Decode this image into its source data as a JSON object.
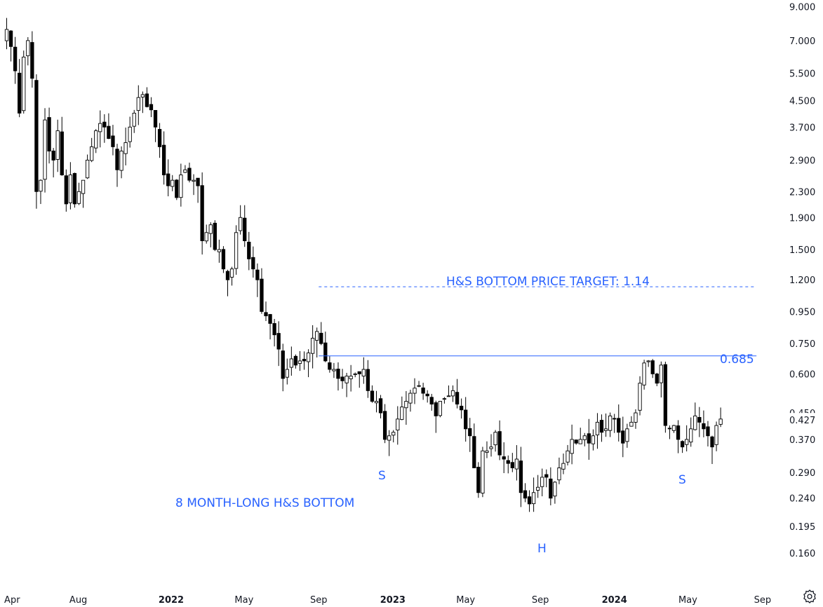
{
  "chart_data": {
    "type": "candlestick",
    "y_scale": "log",
    "ylim": [
      0.14,
      9.2
    ],
    "y_ticks": [
      "9.000",
      "7.000",
      "5.500",
      "4.500",
      "3.700",
      "2.900",
      "2.300",
      "1.900",
      "1.500",
      "1.200",
      "0.950",
      "0.750",
      "0.600",
      "0.450",
      "0.370",
      "0.290",
      "0.240",
      "0.195",
      "0.160"
    ],
    "last_price": "0.427",
    "x_ticks": [
      {
        "label": "Apr",
        "date": "2021-04-01",
        "year": false
      },
      {
        "label": "Aug",
        "date": "2021-08-01",
        "year": false
      },
      {
        "label": "2022",
        "date": "2022-01-01",
        "year": true
      },
      {
        "label": "May",
        "date": "2022-05-01",
        "year": false
      },
      {
        "label": "Sep",
        "date": "2022-09-01",
        "year": false
      },
      {
        "label": "2023",
        "date": "2023-01-01",
        "year": true
      },
      {
        "label": "May",
        "date": "2023-05-01",
        "year": false
      },
      {
        "label": "Sep",
        "date": "2023-09-01",
        "year": false
      },
      {
        "label": "2024",
        "date": "2024-01-01",
        "year": true
      },
      {
        "label": "May",
        "date": "2024-05-01",
        "year": false
      },
      {
        "label": "Sep",
        "date": "2024-09-01",
        "year": false
      }
    ],
    "x_range": [
      "2021-03-25",
      "2024-09-22"
    ],
    "candles_start": "2021-04-05",
    "candle_interval": "weekly",
    "close": [
      7.6,
      6.7,
      5.6,
      4.1,
      6.2,
      7.0,
      5.3,
      2.3,
      2.5,
      3.9,
      3.1,
      2.9,
      3.6,
      2.6,
      2.1,
      2.6,
      2.1,
      2.3,
      2.5,
      2.9,
      3.2,
      3.6,
      3.8,
      3.7,
      3.4,
      3.2,
      2.7,
      3.1,
      3.3,
      3.7,
      4.1,
      4.6,
      4.7,
      4.3,
      4.2,
      3.7,
      3.2,
      2.6,
      2.4,
      2.5,
      2.2,
      2.6,
      2.7,
      2.5,
      2.5,
      2.4,
      1.6,
      1.7,
      1.8,
      1.5,
      1.5,
      1.3,
      1.2,
      1.3,
      1.7,
      1.9,
      1.6,
      1.4,
      1.3,
      1.2,
      0.95,
      0.92,
      0.87,
      0.8,
      0.72,
      0.58,
      0.62,
      0.67,
      0.64,
      0.66,
      0.66,
      0.7,
      0.78,
      0.82,
      0.75,
      0.66,
      0.62,
      0.62,
      0.58,
      0.57,
      0.59,
      0.59,
      0.6,
      0.6,
      0.62,
      0.53,
      0.49,
      0.49,
      0.45,
      0.37,
      0.38,
      0.39,
      0.43,
      0.47,
      0.49,
      0.52,
      0.54,
      0.55,
      0.52,
      0.51,
      0.48,
      0.44,
      0.49,
      0.5,
      0.51,
      0.53,
      0.48,
      0.46,
      0.4,
      0.38,
      0.3,
      0.25,
      0.34,
      0.34,
      0.35,
      0.39,
      0.33,
      0.32,
      0.31,
      0.3,
      0.32,
      0.25,
      0.24,
      0.23,
      0.25,
      0.26,
      0.28,
      0.28,
      0.24,
      0.27,
      0.3,
      0.31,
      0.34,
      0.37,
      0.36,
      0.37,
      0.38,
      0.36,
      0.38,
      0.42,
      0.39,
      0.4,
      0.44,
      0.43,
      0.39,
      0.36,
      0.4,
      0.42,
      0.45,
      0.56,
      0.65,
      0.66,
      0.6,
      0.56,
      0.64,
      0.41,
      0.4,
      0.41,
      0.37,
      0.35,
      0.37,
      0.4,
      0.44,
      0.42,
      0.4,
      0.38,
      0.35,
      0.41,
      0.43
    ],
    "annotations": [
      {
        "text": "H&S BOTTOM PRICE TARGET: 1.14",
        "color": "#2962ff"
      },
      {
        "text": "0.685",
        "color": "#2962ff"
      },
      {
        "text": "S",
        "color": "#2962ff"
      },
      {
        "text": "H",
        "color": "#2962ff"
      },
      {
        "text": "S",
        "color": "#2962ff"
      },
      {
        "text": "8 MONTH-LONG H&S BOTTOM",
        "color": "#2962ff"
      }
    ],
    "levels": [
      {
        "name": "neckline",
        "value": 0.685,
        "style": "solid",
        "start": "2022-09-01",
        "end": "2024-08-22"
      },
      {
        "name": "target",
        "value": 1.14,
        "style": "dashed",
        "start": "2022-09-01",
        "end": "2024-08-22"
      }
    ],
    "grid": false,
    "colors": {
      "up": "#ffffff",
      "down": "#000000",
      "wick": "#000000",
      "annotation": "#2962ff",
      "text": "#131722"
    }
  },
  "ui": {
    "settings_icon": "gear-icon"
  }
}
